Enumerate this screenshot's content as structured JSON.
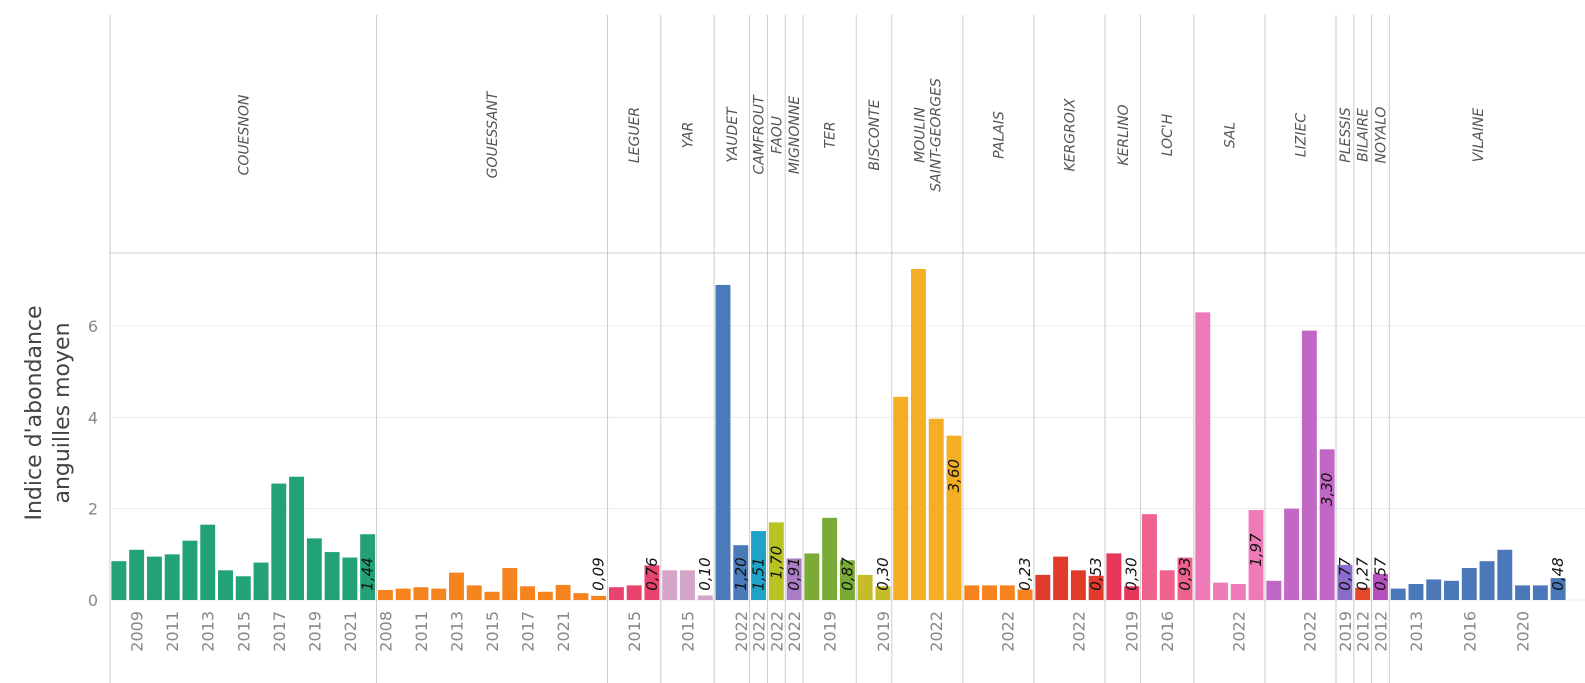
{
  "chart_data": {
    "type": "bar",
    "ylabel": [
      "Indice d'abondance",
      "anguilles moyen"
    ],
    "ylim": [
      0,
      7.6
    ],
    "yticks": [
      0,
      2,
      4,
      6
    ],
    "grid": true,
    "facets": [
      {
        "name": "COUESNON",
        "color": "#23a27a",
        "categories": [
          null,
          "2009",
          null,
          "2011",
          null,
          "2013",
          null,
          "2015",
          null,
          "2017",
          null,
          "2019",
          null,
          "2021",
          null
        ],
        "values": [
          0.85,
          1.1,
          0.95,
          1.0,
          1.3,
          1.65,
          0.65,
          0.52,
          0.82,
          2.55,
          2.7,
          1.35,
          1.05,
          0.93,
          1.44
        ],
        "value_labels": [
          null,
          null,
          null,
          null,
          null,
          null,
          null,
          null,
          null,
          null,
          null,
          null,
          null,
          null,
          "1,44"
        ]
      },
      {
        "name": "GOUESSANT",
        "color": "#f5841f",
        "categories": [
          "2008",
          null,
          "2011",
          null,
          "2013",
          null,
          "2015",
          null,
          "2017",
          null,
          "2021",
          null,
          null
        ],
        "values": [
          0.22,
          0.25,
          0.28,
          0.25,
          0.6,
          0.32,
          0.18,
          0.7,
          0.3,
          0.18,
          0.33,
          0.15,
          0.09
        ],
        "value_labels": [
          null,
          null,
          null,
          null,
          null,
          null,
          null,
          null,
          null,
          null,
          null,
          null,
          "0,09"
        ]
      },
      {
        "name": "LEGUER",
        "color": "#e8426f",
        "categories": [
          null,
          "2015",
          null
        ],
        "values": [
          0.28,
          0.32,
          0.76
        ],
        "value_labels": [
          null,
          null,
          "0,76"
        ]
      },
      {
        "name": "YAR",
        "color": "#d4a5c9",
        "categories": [
          null,
          "2015",
          null
        ],
        "values": [
          0.65,
          0.65,
          0.1
        ],
        "value_labels": [
          null,
          null,
          "0,10"
        ]
      },
      {
        "name": "YAUDET",
        "color": "#4a7ab8",
        "categories": [
          null,
          "2022"
        ],
        "values": [
          6.9,
          1.2
        ],
        "value_labels": [
          null,
          "1,20"
        ]
      },
      {
        "name": "CAMFROUT",
        "color": "#1fa3c9",
        "categories": [
          "2022"
        ],
        "values": [
          1.51
        ],
        "value_labels": [
          "1,51"
        ]
      },
      {
        "name": "FAOU",
        "color": "#b8c222",
        "categories": [
          "2022"
        ],
        "values": [
          1.7
        ],
        "value_labels": [
          "1,70"
        ]
      },
      {
        "name": "MIGNONNE",
        "color": "#a97cc4",
        "categories": [
          "2022"
        ],
        "values": [
          0.91
        ],
        "value_labels": [
          "0,91"
        ]
      },
      {
        "name": "TER",
        "color": "#7aab37",
        "categories": [
          null,
          "2019",
          null
        ],
        "values": [
          1.02,
          1.8,
          0.87
        ],
        "value_labels": [
          null,
          null,
          "0,87"
        ]
      },
      {
        "name": "BISCONTE",
        "color": "#c4bc28",
        "categories": [
          null,
          "2019"
        ],
        "values": [
          0.55,
          0.3
        ],
        "value_labels": [
          null,
          "0,30"
        ]
      },
      {
        "name": "MOULIN\nSAINT-GEORGES",
        "color": "#f5ad24",
        "categories": [
          null,
          null,
          "2022",
          null
        ],
        "values": [
          4.45,
          7.25,
          3.97,
          3.6
        ],
        "value_labels": [
          null,
          null,
          null,
          "3,60"
        ]
      },
      {
        "name": "PALAIS",
        "color": "#f5841f",
        "categories": [
          null,
          null,
          "2022",
          null
        ],
        "values": [
          0.32,
          0.32,
          0.32,
          0.23
        ],
        "value_labels": [
          null,
          null,
          null,
          "0,23"
        ]
      },
      {
        "name": "KERGROIX",
        "color": "#e03b2b",
        "categories": [
          null,
          null,
          "2022",
          null
        ],
        "values": [
          0.55,
          0.95,
          0.65,
          0.53
        ],
        "value_labels": [
          null,
          null,
          null,
          "0,53"
        ]
      },
      {
        "name": "KERLINO",
        "color": "#e5375a",
        "categories": [
          null,
          "2019"
        ],
        "values": [
          1.02,
          0.3
        ],
        "value_labels": [
          null,
          "0,30"
        ]
      },
      {
        "name": "LOC'H",
        "color": "#f0628e",
        "categories": [
          null,
          "2016",
          null
        ],
        "values": [
          1.88,
          0.65,
          0.93
        ],
        "value_labels": [
          null,
          null,
          "0,93"
        ]
      },
      {
        "name": "SAL",
        "color": "#ef7ab8",
        "categories": [
          null,
          null,
          "2022",
          null
        ],
        "values": [
          6.3,
          0.38,
          0.35,
          1.97
        ],
        "value_labels": [
          null,
          null,
          null,
          "1,97"
        ]
      },
      {
        "name": "LIZIEC",
        "color": "#c167c6",
        "categories": [
          null,
          null,
          "2022",
          null
        ],
        "values": [
          0.42,
          2.0,
          5.9,
          3.3
        ],
        "value_labels": [
          null,
          null,
          null,
          "3,30"
        ]
      },
      {
        "name": "PLESSIS",
        "color": "#8a6cc9",
        "categories": [
          "2019"
        ],
        "values": [
          0.77
        ],
        "value_labels": [
          "0,77"
        ]
      },
      {
        "name": "BILAIRE",
        "color": "#e8472c",
        "categories": [
          "2012"
        ],
        "values": [
          0.27
        ],
        "value_labels": [
          "0,27"
        ]
      },
      {
        "name": "NOYALO",
        "color": "#b64fc0",
        "categories": [
          "2012"
        ],
        "values": [
          0.57
        ],
        "value_labels": [
          "0,57"
        ]
      },
      {
        "name": "VILAINE",
        "color": "#4a78b8",
        "categories": [
          null,
          "2013",
          null,
          null,
          "2016",
          null,
          null,
          "2020",
          null,
          null
        ],
        "values": [
          0.25,
          0.35,
          0.45,
          0.42,
          0.7,
          0.85,
          1.1,
          0.32,
          0.32,
          0.48
        ],
        "value_labels": [
          null,
          null,
          null,
          null,
          null,
          null,
          null,
          null,
          null,
          "0,48"
        ]
      }
    ]
  }
}
